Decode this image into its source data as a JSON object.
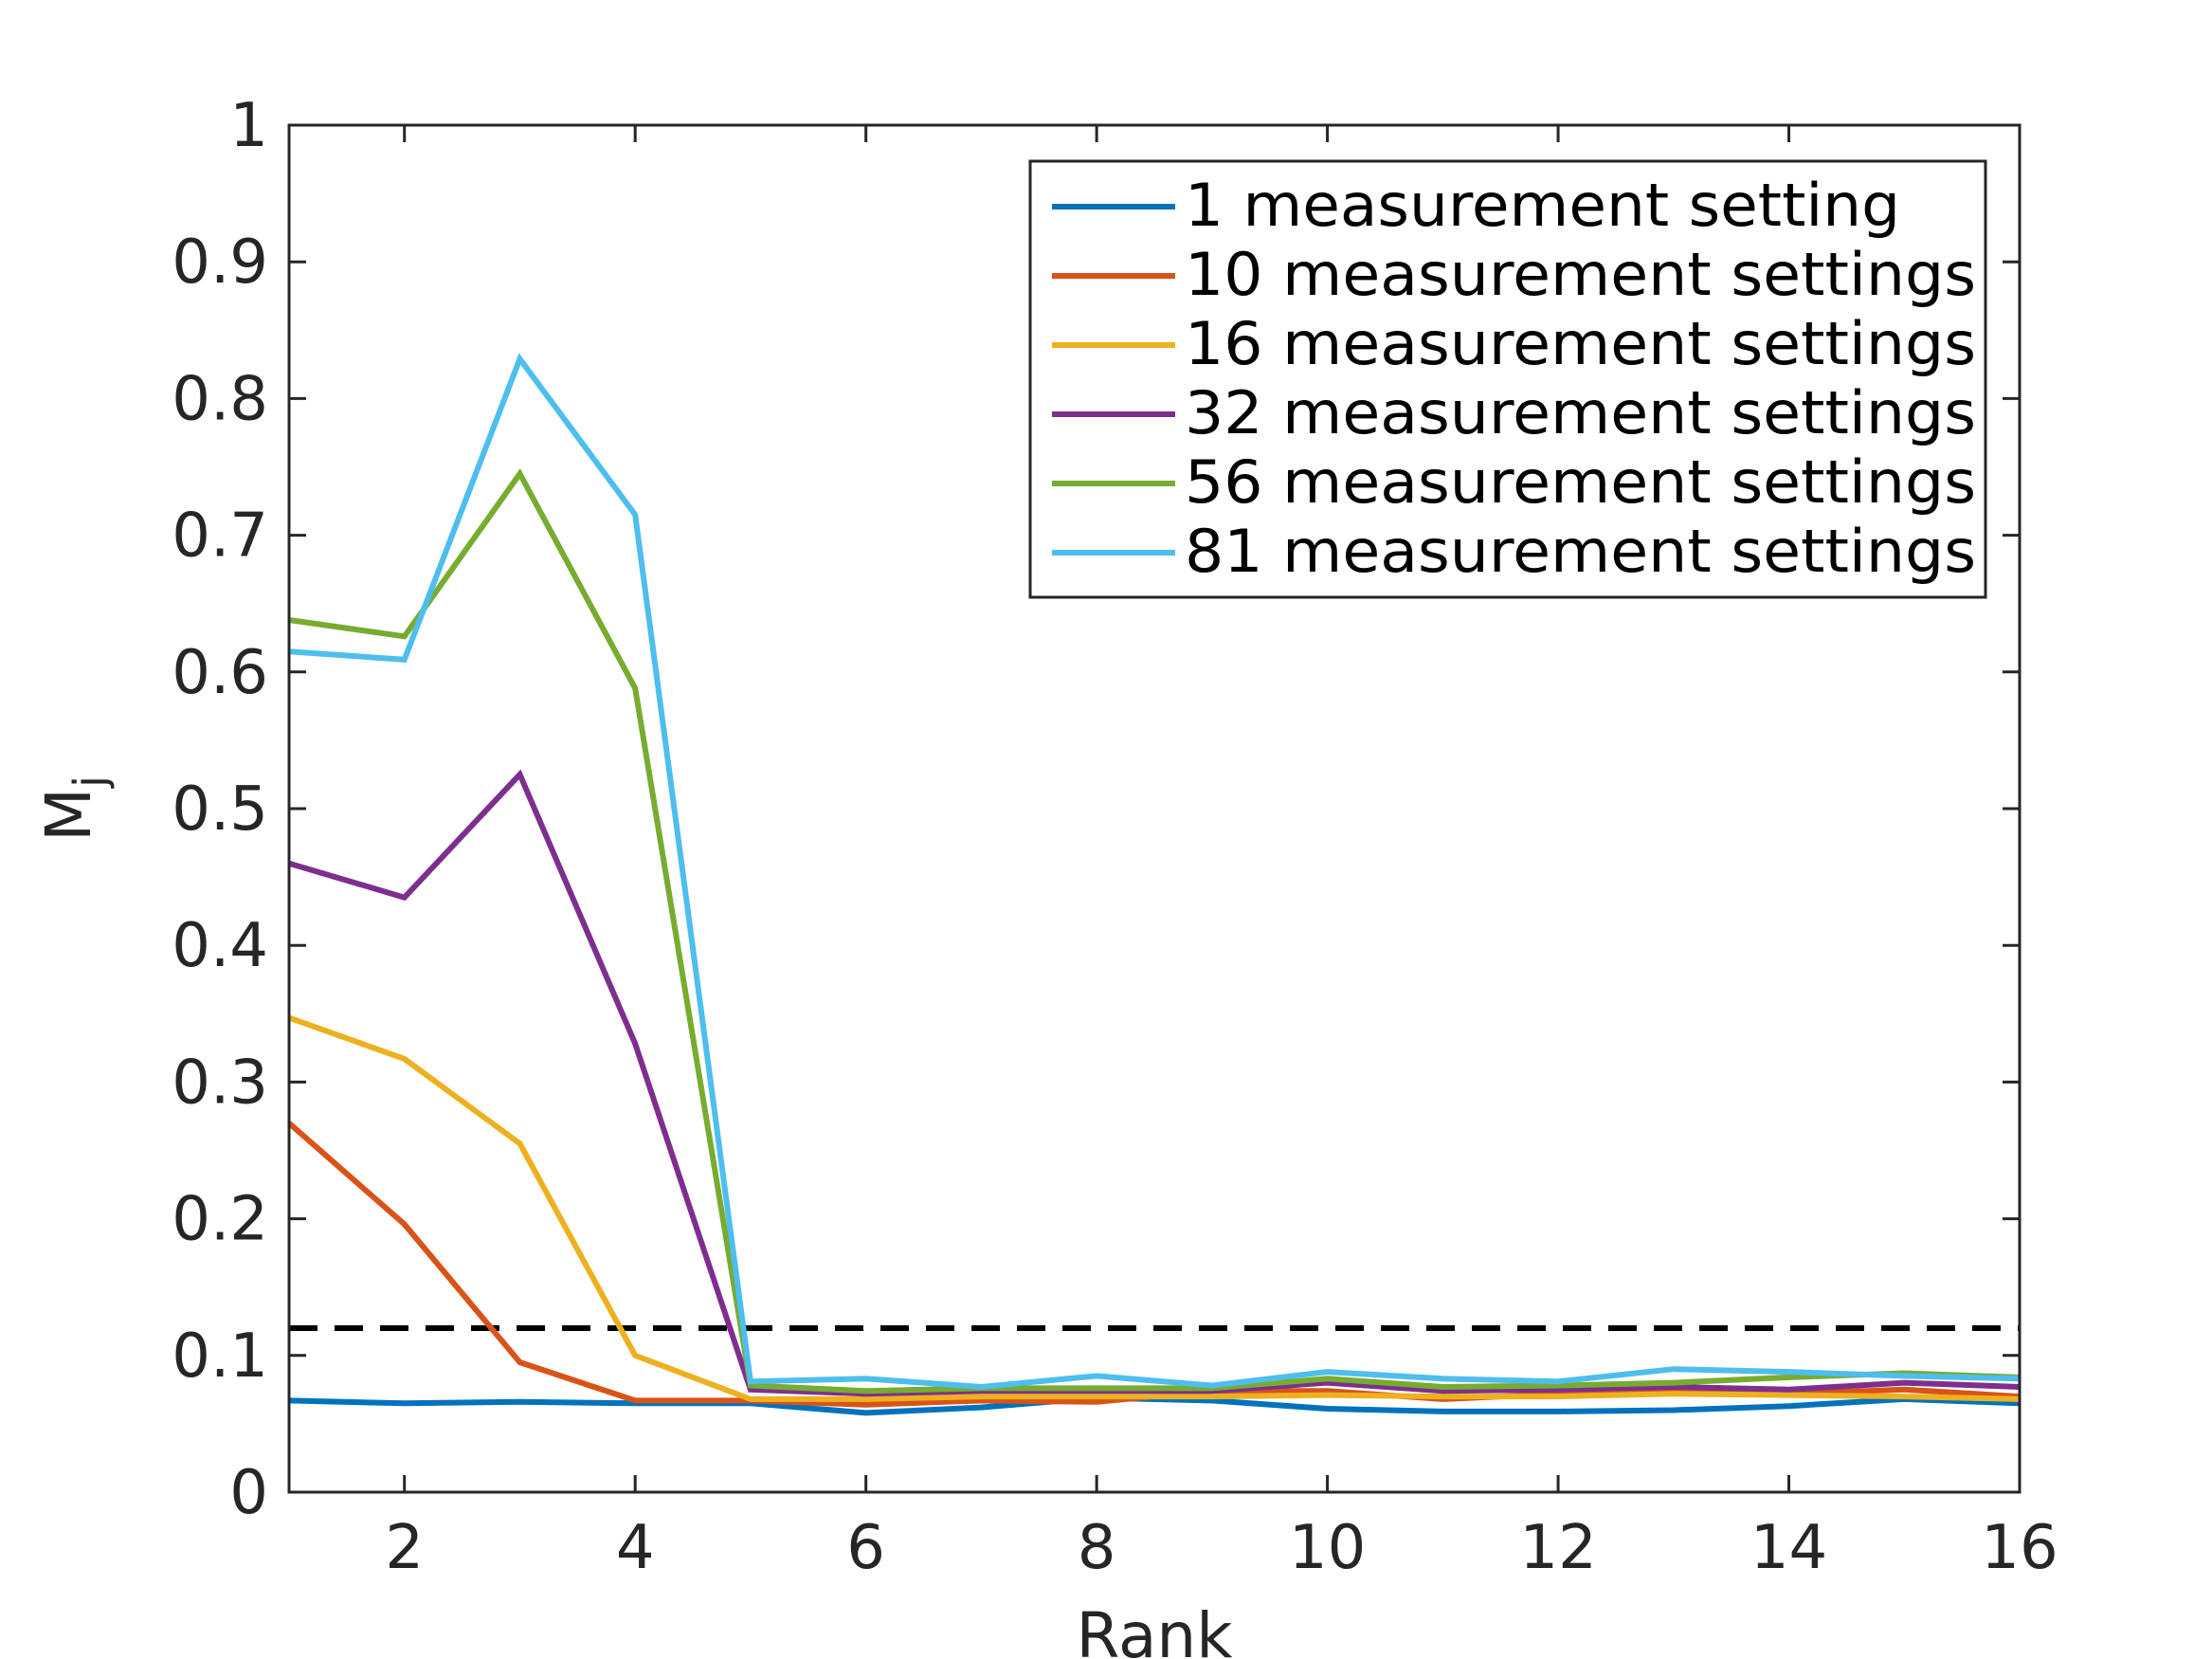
{
  "chart_data": {
    "type": "line",
    "title": "",
    "xlabel": "Rank",
    "ylabel": "M",
    "ylabel_subscript": "j",
    "xlim": [
      1,
      16
    ],
    "ylim": [
      0,
      1
    ],
    "xticks": [
      2,
      4,
      6,
      8,
      10,
      12,
      14,
      16
    ],
    "yticks": [
      0,
      0.1,
      0.2,
      0.3,
      0.4,
      0.5,
      0.6,
      0.7,
      0.8,
      0.9,
      1
    ],
    "ytick_labels": [
      "0",
      "0.1",
      "0.2",
      "0.3",
      "0.4",
      "0.5",
      "0.6",
      "0.7",
      "0.8",
      "0.9",
      "1"
    ],
    "grid": false,
    "legend_position": "top-right",
    "x": [
      1,
      2,
      3,
      4,
      5,
      6,
      7,
      8,
      9,
      10,
      11,
      12,
      13,
      14,
      15,
      16
    ],
    "reference_line": {
      "y": 0.12,
      "style": "dashed",
      "color": "#000000"
    },
    "series": [
      {
        "name": "1 measurement setting",
        "color": "#0072BD",
        "values": [
          0.067,
          0.065,
          0.066,
          0.065,
          0.065,
          0.058,
          0.062,
          0.069,
          0.067,
          0.061,
          0.059,
          0.059,
          0.06,
          0.063,
          0.068,
          0.065
        ]
      },
      {
        "name": "10 measurement settings",
        "color": "#D95319",
        "values": [
          0.27,
          0.196,
          0.095,
          0.067,
          0.067,
          0.064,
          0.067,
          0.066,
          0.074,
          0.074,
          0.068,
          0.072,
          0.074,
          0.072,
          0.075,
          0.07
        ]
      },
      {
        "name": "16 measurement settings",
        "color": "#EDB120",
        "values": [
          0.347,
          0.317,
          0.255,
          0.1,
          0.068,
          0.068,
          0.07,
          0.07,
          0.07,
          0.071,
          0.07,
          0.07,
          0.072,
          0.071,
          0.07,
          0.068
        ]
      },
      {
        "name": "32 measurement settings",
        "color": "#7E2F8E",
        "values": [
          0.46,
          0.435,
          0.525,
          0.328,
          0.075,
          0.072,
          0.074,
          0.074,
          0.074,
          0.08,
          0.074,
          0.075,
          0.077,
          0.075,
          0.08,
          0.077
        ]
      },
      {
        "name": "56 measurement settings",
        "color": "#77AC30",
        "values": [
          0.638,
          0.626,
          0.745,
          0.588,
          0.078,
          0.074,
          0.076,
          0.076,
          0.076,
          0.083,
          0.077,
          0.078,
          0.08,
          0.084,
          0.087,
          0.084
        ]
      },
      {
        "name": "81 measurement settings",
        "color": "#4DBEEE",
        "values": [
          0.615,
          0.609,
          0.829,
          0.715,
          0.081,
          0.083,
          0.077,
          0.085,
          0.078,
          0.088,
          0.083,
          0.081,
          0.09,
          0.088,
          0.085,
          0.083
        ]
      }
    ]
  }
}
